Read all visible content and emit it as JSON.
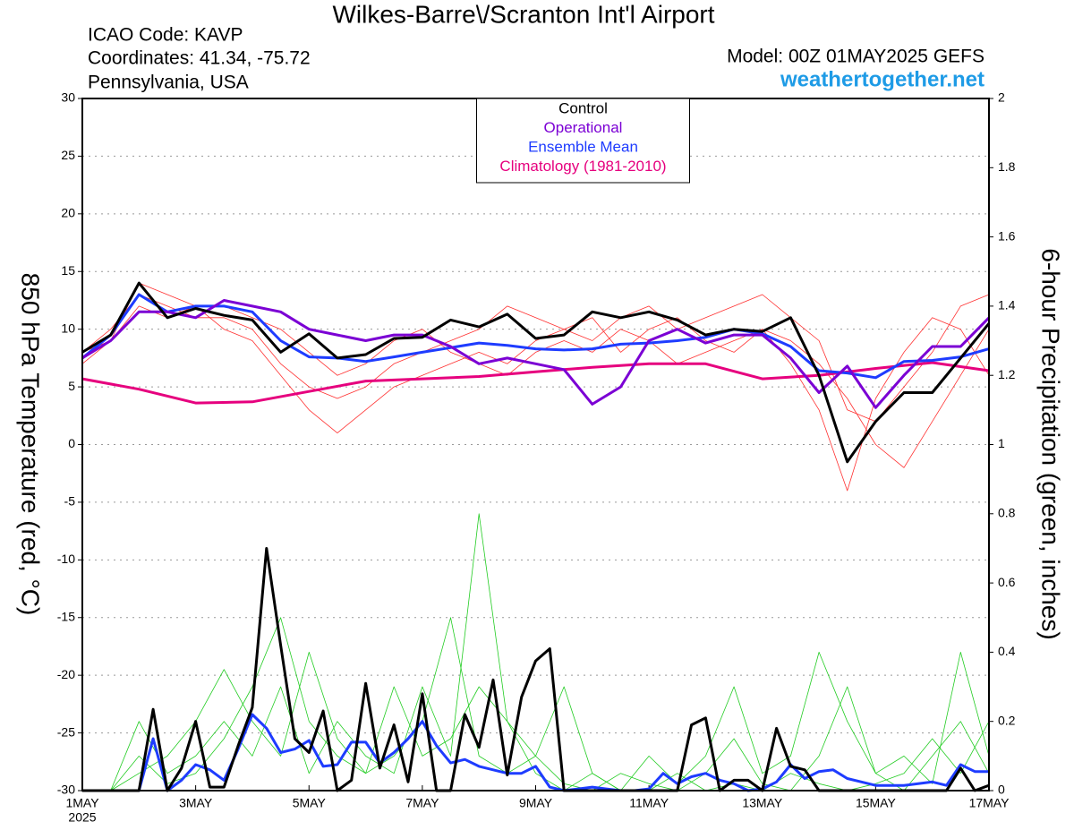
{
  "chart_data": {
    "type": "line",
    "title": "Wilkes-Barre\\/Scranton Int'l Airport",
    "info_left": [
      "ICAO Code: KAVP",
      "Coordinates: 41.34, -75.72",
      "Pennsylvania, USA"
    ],
    "model": "Model: 00Z 01MAY2025 GEFS",
    "source": "weathertogether.net",
    "ylabel": "850 hPa Temperature (red, °C)",
    "y2label": "6-hour Precipitation (green, inches)",
    "xlim": [
      0,
      16
    ],
    "xticks": [
      {
        "value": 0,
        "label": "1MAY"
      },
      {
        "value": 2,
        "label": "3MAY"
      },
      {
        "value": 4,
        "label": "5MAY"
      },
      {
        "value": 6,
        "label": "7MAY"
      },
      {
        "value": 8,
        "label": "9MAY"
      },
      {
        "value": 10,
        "label": "11MAY"
      },
      {
        "value": 12,
        "label": "13MAY"
      },
      {
        "value": 14,
        "label": "15MAY"
      },
      {
        "value": 16,
        "label": "17MAY"
      }
    ],
    "year_label": "2025",
    "ylim": [
      -30,
      30
    ],
    "yticks": [
      -30,
      -25,
      -20,
      -15,
      -10,
      -5,
      0,
      5,
      10,
      15,
      20,
      25,
      30
    ],
    "y2lim": [
      0,
      2
    ],
    "y2ticks": [
      0,
      0.2,
      0.4,
      0.6,
      0.8,
      1,
      1.2,
      1.4,
      1.6,
      1.8,
      2
    ],
    "grid": true,
    "legend": "top-center",
    "x": [
      0,
      0.5,
      1,
      1.5,
      2,
      2.5,
      3,
      3.5,
      4,
      4.5,
      5,
      5.5,
      6,
      6.5,
      7,
      7.5,
      8,
      8.5,
      9,
      9.5,
      10,
      10.5,
      11,
      11.5,
      12,
      12.5,
      13,
      13.5,
      14,
      14.5,
      15,
      15.5,
      16
    ],
    "series": [
      {
        "color": "#ff3030",
        "width": 0.8,
        "values": [
          8,
          10,
          13,
          12,
          11,
          11,
          10,
          7,
          5,
          4,
          5,
          7,
          8,
          9,
          10,
          12,
          11,
          10,
          9,
          11,
          12,
          10,
          11,
          12,
          13,
          11,
          9,
          3,
          2,
          5,
          8,
          12,
          13
        ]
      },
      {
        "color": "#ff3030",
        "width": 0.8,
        "values": [
          8,
          9,
          12,
          11,
          12,
          10,
          9,
          6,
          3,
          1,
          3,
          5,
          6,
          7,
          8,
          7,
          9,
          10,
          11,
          8,
          10,
          11,
          9,
          8,
          10,
          9,
          7,
          4,
          0,
          -2,
          2,
          6,
          10
        ]
      },
      {
        "color": "#ff3030",
        "width": 0.8,
        "values": [
          7,
          9,
          14,
          13,
          12,
          12,
          11,
          10,
          8,
          6,
          7,
          9,
          10,
          8,
          7,
          6,
          8,
          9,
          8,
          10,
          9,
          7,
          8,
          9,
          10,
          7,
          3,
          -4,
          4,
          8,
          11,
          10,
          6
        ]
      },
      {
        "color": "#22cc22",
        "width": 0.8,
        "axis": "y2",
        "values": [
          0,
          0,
          0.1,
          0.02,
          0.05,
          0.15,
          0.3,
          0.5,
          0.2,
          0.1,
          0.05,
          0.3,
          0.1,
          0.15,
          0.3,
          0.2,
          0.05,
          0,
          0.05,
          0,
          0.1,
          0.02,
          0.1,
          0.3,
          0.05,
          0.1,
          0.4,
          0.2,
          0.05,
          0,
          0.1,
          0.2,
          0.05
        ]
      },
      {
        "color": "#22cc22",
        "width": 0.8,
        "axis": "y2",
        "values": [
          0,
          0,
          0.05,
          0.1,
          0.2,
          0.35,
          0.2,
          0.1,
          0.4,
          0.15,
          0.05,
          0.1,
          0.2,
          0.5,
          0.1,
          0.05,
          0.1,
          0.02,
          0,
          0.05,
          0.02,
          0,
          0.05,
          0.15,
          0.02,
          0,
          0.1,
          0.3,
          0.05,
          0.1,
          0.02,
          0.4,
          0.1
        ]
      },
      {
        "color": "#22cc22",
        "width": 0.8,
        "axis": "y2",
        "values": [
          0,
          0,
          0.2,
          0.05,
          0.1,
          0.2,
          0.1,
          0.3,
          0.05,
          0.2,
          0.1,
          0.05,
          0.3,
          0.1,
          0.8,
          0.2,
          0.1,
          0.3,
          0.05,
          0,
          0,
          0.05,
          0,
          0.02,
          0,
          0.05,
          0.02,
          0,
          0.02,
          0.05,
          0.15,
          0.05,
          0.2
        ]
      },
      {
        "name": "Climatology (1981-2010)",
        "color": "#e6007e",
        "width": 3,
        "x": [
          0,
          1,
          2,
          3,
          4,
          5,
          6,
          7,
          8,
          9,
          10,
          11,
          12,
          13,
          14,
          15,
          16
        ],
        "values": [
          5.7,
          4.8,
          3.6,
          3.7,
          4.6,
          5.5,
          5.7,
          5.9,
          6.3,
          6.7,
          7,
          7,
          5.7,
          6,
          6.6,
          7.1,
          6.4
        ]
      },
      {
        "color": "#1e3cff",
        "width": 3,
        "axis": "y2",
        "x": [
          0,
          0.25,
          0.5,
          0.75,
          1,
          1.25,
          1.5,
          1.75,
          2,
          2.25,
          2.5,
          2.75,
          3,
          3.25,
          3.5,
          3.75,
          4,
          4.25,
          4.5,
          4.75,
          5,
          5.25,
          5.5,
          5.75,
          6,
          6.25,
          6.5,
          6.75,
          7,
          7.25,
          7.5,
          7.75,
          8,
          8.25,
          8.5,
          8.75,
          9,
          9.25,
          9.5,
          9.75,
          10,
          10.25,
          10.5,
          10.75,
          11,
          11.25,
          11.5,
          11.75,
          12,
          12.25,
          12.5,
          12.75,
          13,
          13.25,
          13.5,
          13.75,
          14,
          14.25,
          14.5,
          14.75,
          15,
          15.25,
          15.5,
          15.75,
          16
        ],
        "values": [
          0,
          0,
          0,
          0,
          0,
          0.15,
          0,
          0.03,
          0.075,
          0.06,
          0.03,
          0.12,
          0.22,
          0.18,
          0.11,
          0.12,
          0.145,
          0.07,
          0.075,
          0.14,
          0.14,
          0.08,
          0.11,
          0.15,
          0.2,
          0.13,
          0.08,
          0.09,
          0.07,
          0.06,
          0.05,
          0.05,
          0.07,
          0.01,
          0,
          0.005,
          0.01,
          0.005,
          0,
          0,
          0.005,
          0.05,
          0.02,
          0.04,
          0.05,
          0.03,
          0.02,
          0,
          0.005,
          0.025,
          0.075,
          0.035,
          0.055,
          0.06,
          0.035,
          0.025,
          0.015,
          0.015,
          0.015,
          0.02,
          0.025,
          0.015,
          0.075,
          0.055,
          0.055
        ]
      },
      {
        "color": "#000000",
        "width": 3,
        "axis": "y2",
        "x": [
          0,
          0.25,
          0.5,
          0.75,
          1,
          1.25,
          1.5,
          1.75,
          2,
          2.25,
          2.5,
          2.75,
          3,
          3.25,
          3.5,
          3.75,
          4,
          4.25,
          4.5,
          4.75,
          5,
          5.25,
          5.5,
          5.75,
          6,
          6.25,
          6.5,
          6.75,
          7,
          7.25,
          7.5,
          7.75,
          8,
          8.25,
          8.5,
          8.75,
          9,
          9.25,
          9.5,
          9.75,
          10,
          10.25,
          10.5,
          10.75,
          11,
          11.25,
          11.5,
          11.75,
          12,
          12.25,
          12.5,
          12.75,
          13,
          13.25,
          13.5,
          13.75,
          14,
          14.25,
          14.5,
          14.75,
          15,
          15.25,
          15.5,
          15.75,
          16
        ],
        "values": [
          0,
          0,
          0,
          0,
          0,
          0.235,
          0,
          0.065,
          0.2,
          0.01,
          0.01,
          0.13,
          0.24,
          0.7,
          0.42,
          0.15,
          0.11,
          0.23,
          0,
          0.03,
          0.31,
          0.065,
          0.19,
          0.025,
          0.28,
          0,
          0,
          0.22,
          0.125,
          0.32,
          0.045,
          0.27,
          0.375,
          0.41,
          0,
          0,
          0,
          0,
          0,
          0,
          0,
          0,
          0,
          0.19,
          0.21,
          0,
          0.03,
          0.03,
          0,
          0.18,
          0.07,
          0.06,
          0,
          0,
          0,
          0,
          0,
          0,
          0,
          0,
          0,
          0,
          0.065,
          0,
          0.015
        ]
      },
      {
        "name": "Ensemble Mean",
        "color": "#1e3cff",
        "width": 3,
        "values": [
          7.5,
          9.5,
          13,
          11.5,
          12,
          12,
          11.5,
          9,
          7.6,
          7.5,
          7.2,
          7.6,
          8,
          8.4,
          8.8,
          8.6,
          8.3,
          8.2,
          8.3,
          8.7,
          8.8,
          9,
          9.3,
          10,
          9.6,
          8.5,
          6.4,
          6.2,
          5.8,
          7.2,
          7.3,
          7.6,
          8.3
        ]
      },
      {
        "name": "Operational",
        "color": "#7b00d4",
        "width": 3,
        "values": [
          7.5,
          9,
          11.5,
          11.5,
          11,
          12.5,
          12,
          11.5,
          10,
          9.5,
          9,
          9.5,
          9.5,
          8.5,
          7,
          7.5,
          7,
          6.5,
          3.5,
          5,
          9,
          10,
          8.8,
          9.5,
          9.5,
          7.5,
          4.5,
          6.8,
          3.2,
          6,
          8.5,
          8.5,
          11
        ]
      },
      {
        "name": "Control",
        "color": "#000000",
        "width": 3,
        "values": [
          8,
          9.5,
          14,
          11,
          11.8,
          11.2,
          10.8,
          8,
          9.6,
          7.5,
          7.8,
          9.2,
          9.3,
          10.8,
          10.2,
          11.3,
          9.2,
          9.5,
          11.5,
          11,
          11.5,
          10.8,
          9.5,
          10,
          9.8,
          11,
          6,
          -1.5,
          2,
          4.5,
          4.5,
          7.5,
          10.5
        ]
      }
    ]
  }
}
